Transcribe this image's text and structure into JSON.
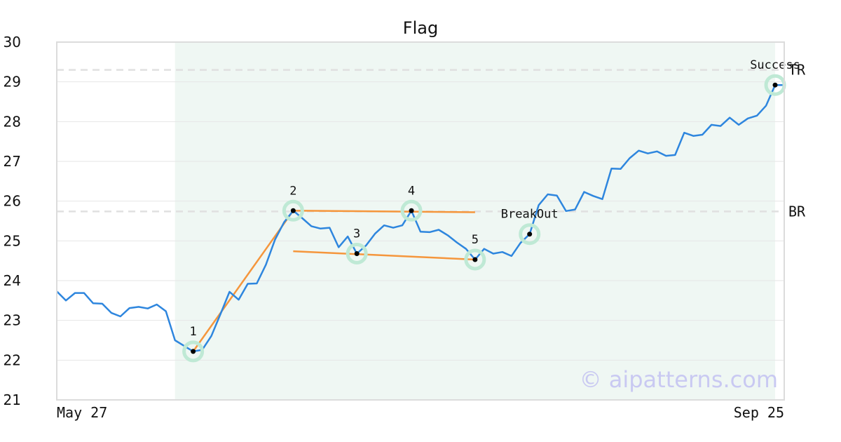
{
  "chart_data": {
    "type": "line",
    "title": "Flag",
    "xlabel": "",
    "ylabel": "",
    "ylim": [
      21,
      30
    ],
    "yticks": [
      21,
      22,
      23,
      24,
      25,
      26,
      27,
      28,
      29,
      30
    ],
    "x_tick_labels": [
      "May 27",
      "Sep 25"
    ],
    "grid": true,
    "shaded_range": [
      13,
      79
    ],
    "series": [
      {
        "color": "#2e86de",
        "values": [
          23.73,
          23.5,
          23.69,
          23.69,
          23.43,
          23.42,
          23.19,
          23.1,
          23.31,
          23.34,
          23.3,
          23.4,
          23.23,
          22.5,
          22.36,
          22.22,
          22.26,
          22.61,
          23.16,
          23.72,
          23.52,
          23.92,
          23.93,
          24.4,
          25.03,
          25.47,
          25.76,
          25.57,
          25.37,
          25.31,
          25.33,
          24.84,
          25.11,
          24.68,
          24.88,
          25.18,
          25.39,
          25.33,
          25.39,
          25.76,
          25.23,
          25.22,
          25.28,
          25.14,
          24.96,
          24.8,
          24.53,
          24.8,
          24.68,
          24.72,
          24.62,
          24.95,
          25.17,
          25.9,
          26.17,
          26.14,
          25.75,
          25.79,
          26.23,
          26.13,
          26.05,
          26.82,
          26.81,
          27.08,
          27.27,
          27.2,
          27.25,
          27.14,
          27.16,
          27.72,
          27.64,
          27.67,
          27.92,
          27.89,
          28.1,
          27.92,
          28.08,
          28.15,
          28.4,
          28.92,
          28.92
        ]
      }
    ],
    "pattern_lines": [
      {
        "color": "#f5963c",
        "from": [
          15,
          22.22
        ],
        "to": [
          26,
          25.76
        ]
      },
      {
        "color": "#f5963c",
        "from": [
          26,
          25.76
        ],
        "to": [
          46,
          25.72
        ]
      },
      {
        "color": "#f5963c",
        "from": [
          26,
          24.74
        ],
        "to": [
          46,
          24.53
        ]
      }
    ],
    "points": [
      {
        "label": "1",
        "x": 15,
        "y": 22.22
      },
      {
        "label": "2",
        "x": 26,
        "y": 25.76
      },
      {
        "label": "3",
        "x": 33,
        "y": 24.68
      },
      {
        "label": "4",
        "x": 39,
        "y": 25.76
      },
      {
        "label": "5",
        "x": 46,
        "y": 24.53
      },
      {
        "label": "BreakOut",
        "x": 52,
        "y": 25.17
      },
      {
        "label": "Success",
        "x": 79,
        "y": 28.92
      }
    ],
    "reference_lines": [
      {
        "label": "TR",
        "y": 29.3
      },
      {
        "label": "BR",
        "y": 25.74
      }
    ],
    "watermark": "© aipatterns.com"
  }
}
